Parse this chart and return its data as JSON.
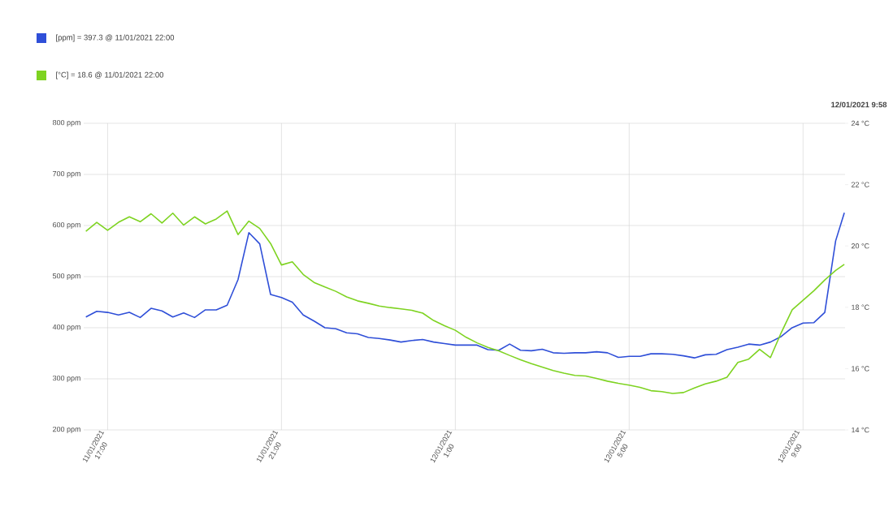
{
  "chart_data": {
    "type": "line",
    "annotations": [
      "12/01/2021 9:58"
    ],
    "x": [
      "2021-01-11T16:30",
      "2021-01-11T16:45",
      "2021-01-11T17:00",
      "2021-01-11T17:15",
      "2021-01-11T17:30",
      "2021-01-11T17:45",
      "2021-01-11T18:00",
      "2021-01-11T18:15",
      "2021-01-11T18:30",
      "2021-01-11T18:45",
      "2021-01-11T19:00",
      "2021-01-11T19:15",
      "2021-01-11T19:30",
      "2021-01-11T19:45",
      "2021-01-11T20:00",
      "2021-01-11T20:15",
      "2021-01-11T20:30",
      "2021-01-11T20:45",
      "2021-01-11T21:00",
      "2021-01-11T21:15",
      "2021-01-11T21:30",
      "2021-01-11T21:45",
      "2021-01-11T22:00",
      "2021-01-11T22:15",
      "2021-01-11T22:30",
      "2021-01-11T22:45",
      "2021-01-11T23:00",
      "2021-01-11T23:15",
      "2021-01-11T23:30",
      "2021-01-11T23:45",
      "2021-01-12T00:00",
      "2021-01-12T00:15",
      "2021-01-12T00:30",
      "2021-01-12T00:45",
      "2021-01-12T01:00",
      "2021-01-12T01:15",
      "2021-01-12T01:30",
      "2021-01-12T01:45",
      "2021-01-12T02:00",
      "2021-01-12T02:15",
      "2021-01-12T02:30",
      "2021-01-12T02:45",
      "2021-01-12T03:00",
      "2021-01-12T03:15",
      "2021-01-12T03:30",
      "2021-01-12T03:45",
      "2021-01-12T04:00",
      "2021-01-12T04:15",
      "2021-01-12T04:30",
      "2021-01-12T04:45",
      "2021-01-12T05:00",
      "2021-01-12T05:15",
      "2021-01-12T05:30",
      "2021-01-12T05:45",
      "2021-01-12T06:00",
      "2021-01-12T06:15",
      "2021-01-12T06:30",
      "2021-01-12T06:45",
      "2021-01-12T07:00",
      "2021-01-12T07:15",
      "2021-01-12T07:30",
      "2021-01-12T07:45",
      "2021-01-12T08:00",
      "2021-01-12T08:15",
      "2021-01-12T08:30",
      "2021-01-12T08:45",
      "2021-01-12T09:00",
      "2021-01-12T09:15",
      "2021-01-12T09:30",
      "2021-01-12T09:45",
      "2021-01-12T09:57"
    ],
    "series": [
      {
        "name": "[ppm] = 397.3 @ 11/01/2021 22:00",
        "color": "#2f4fd8",
        "axis": "y",
        "values": [
          421,
          432,
          430,
          425,
          430,
          420,
          438,
          433,
          421,
          429,
          420,
          435,
          435,
          444,
          494,
          586,
          564,
          465,
          459,
          450,
          425,
          413,
          400,
          398,
          390,
          388,
          381,
          379,
          376,
          372,
          375,
          377,
          372,
          369,
          366,
          366,
          366,
          357,
          356,
          368,
          356,
          355,
          358,
          351,
          350,
          351,
          351,
          353,
          351,
          342,
          344,
          344,
          349,
          349,
          348,
          345,
          341,
          347,
          348,
          357,
          362,
          368,
          366,
          372,
          383,
          400,
          409,
          410,
          430,
          570,
          625
        ]
      },
      {
        "name": "[°C] = 18.6 @ 11/01/2021 22:00",
        "color": "#7ed321",
        "axis": "y2",
        "values": [
          20.48,
          20.77,
          20.51,
          20.77,
          20.95,
          20.79,
          21.05,
          20.75,
          21.07,
          20.68,
          20.95,
          20.72,
          20.88,
          21.14,
          20.37,
          20.81,
          20.57,
          20.08,
          19.38,
          19.48,
          19.07,
          18.81,
          18.66,
          18.52,
          18.34,
          18.21,
          18.13,
          18.04,
          17.99,
          17.95,
          17.9,
          17.81,
          17.57,
          17.4,
          17.25,
          17.02,
          16.84,
          16.69,
          16.58,
          16.43,
          16.29,
          16.16,
          16.05,
          15.94,
          15.85,
          15.78,
          15.76,
          15.68,
          15.59,
          15.52,
          15.46,
          15.39,
          15.28,
          15.25,
          15.19,
          15.22,
          15.37,
          15.5,
          15.59,
          15.72,
          16.2,
          16.31,
          16.63,
          16.36,
          17.18,
          17.92,
          18.23,
          18.54,
          18.89,
          19.2,
          19.4
        ]
      }
    ],
    "xlim": [
      "2021-01-11T16:27",
      "2021-01-12T09:58"
    ],
    "xticks": [
      {
        "value": "2021-01-11T17:00",
        "label": "11/01/2021 17:00"
      },
      {
        "value": "2021-01-11T21:00",
        "label": "11/01/2021 21:00"
      },
      {
        "value": "2021-01-12T01:00",
        "label": "12/01/2021 1:00"
      },
      {
        "value": "2021-01-12T05:00",
        "label": "12/01/2021 5:00"
      },
      {
        "value": "2021-01-12T09:00",
        "label": "12/01/2021 9:00"
      }
    ],
    "ylim": [
      200,
      800
    ],
    "yticks": [
      {
        "value": 200,
        "label": "200 ppm"
      },
      {
        "value": 300,
        "label": "300 ppm"
      },
      {
        "value": 400,
        "label": "400 ppm"
      },
      {
        "value": 500,
        "label": "500 ppm"
      },
      {
        "value": 600,
        "label": "600 ppm"
      },
      {
        "value": 700,
        "label": "700 ppm"
      },
      {
        "value": 800,
        "label": "800 ppm"
      }
    ],
    "y2lim": [
      14,
      24
    ],
    "y2ticks": [
      {
        "value": 14,
        "label": "14 °C"
      },
      {
        "value": 16,
        "label": "16 °C"
      },
      {
        "value": 18,
        "label": "18 °C"
      },
      {
        "value": 20,
        "label": "20 °C"
      },
      {
        "value": 22,
        "label": "22 °C"
      },
      {
        "value": 24,
        "label": "24 °C"
      }
    ],
    "grid": true,
    "legend": "top left"
  }
}
